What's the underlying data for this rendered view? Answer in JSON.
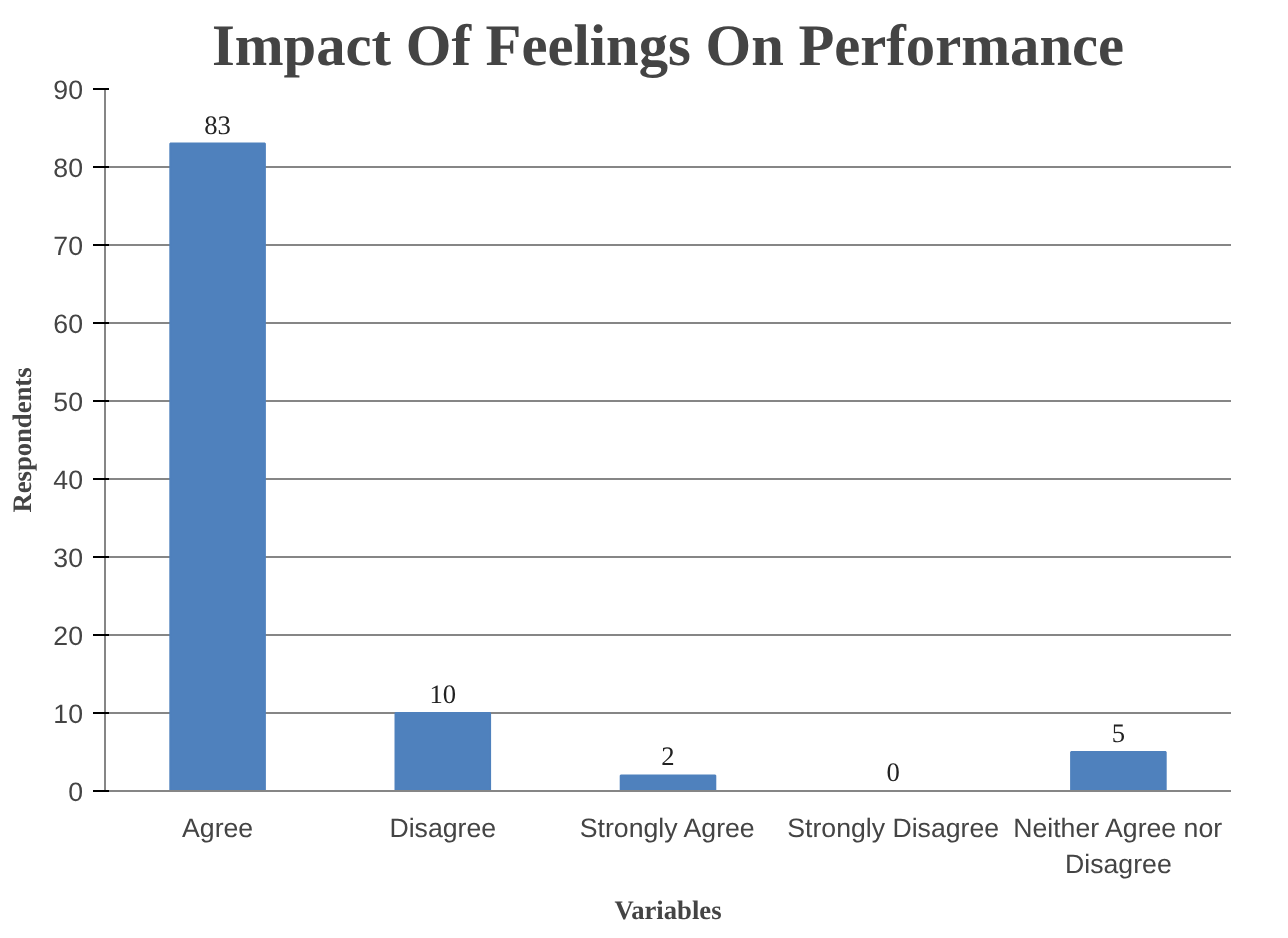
{
  "chart_data": {
    "type": "bar",
    "title": "Impact Of Feelings On Performance",
    "xlabel": "Variables",
    "ylabel": "Respondents",
    "categories": [
      "Agree",
      "Disagree",
      "Strongly Agree",
      "Strongly Disagree",
      "Neither Agree nor Disagree"
    ],
    "values": [
      83,
      10,
      2,
      0,
      5
    ],
    "color": "#4f81bd",
    "ylim": [
      0,
      90
    ],
    "yticks": [
      0,
      10,
      20,
      30,
      40,
      50,
      60,
      70,
      80,
      90
    ],
    "grid": "y",
    "data_labels": true
  }
}
